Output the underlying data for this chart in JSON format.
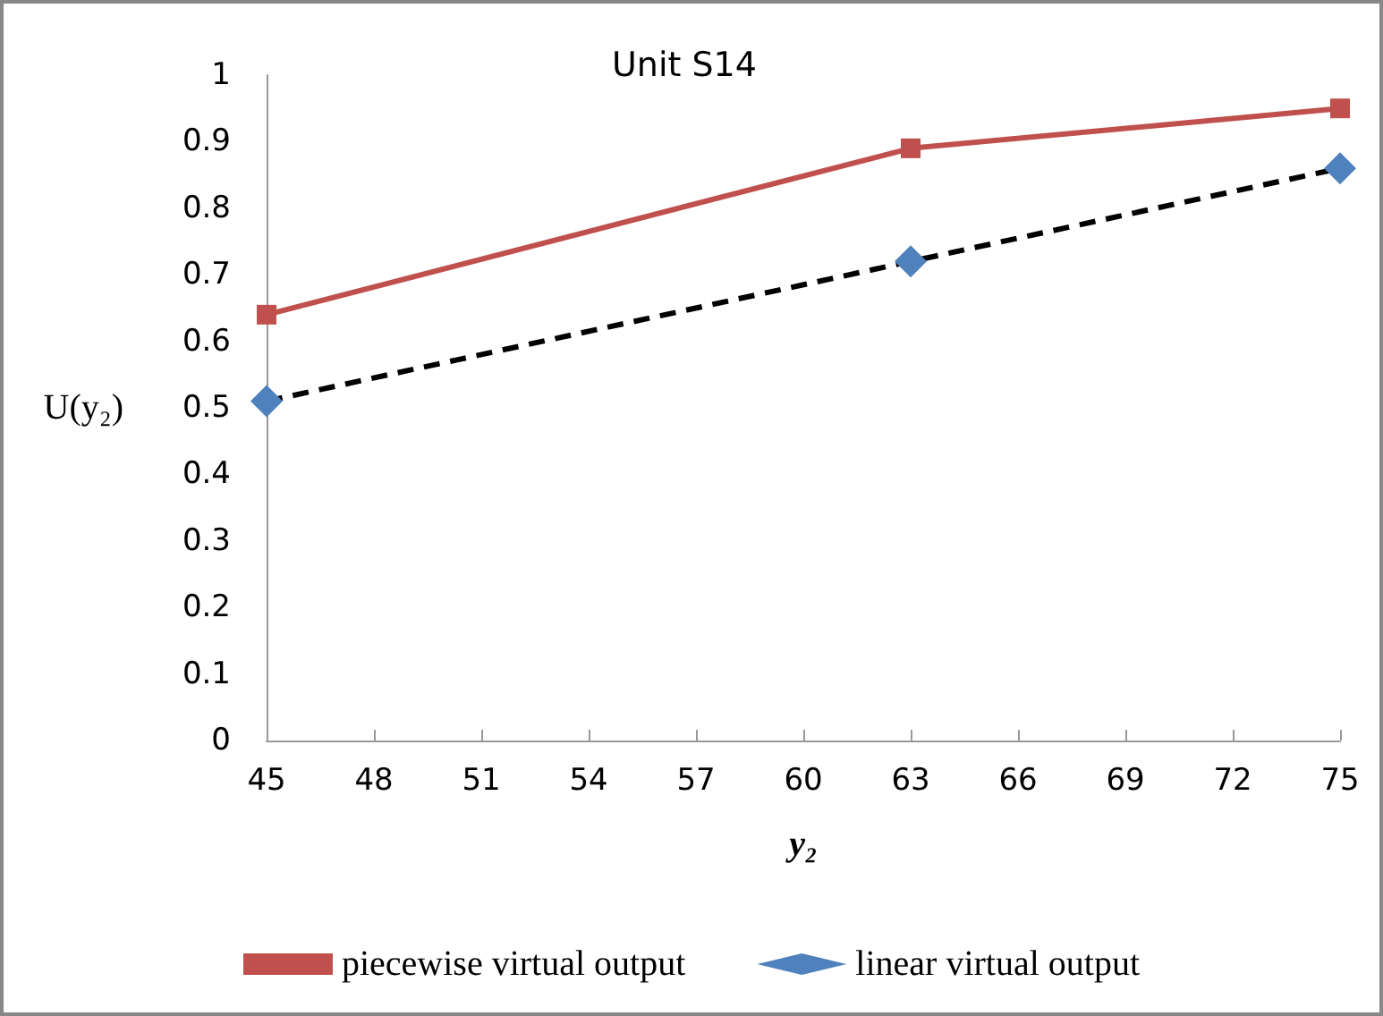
{
  "chart_data": {
    "type": "line",
    "title": "Unit S14",
    "xlabel": "y₂",
    "ylabel": "U(y₂)",
    "x": [
      45,
      63,
      75
    ],
    "series": [
      {
        "name": "piecewise virtual output",
        "color": "#c0504d",
        "values": [
          0.64,
          0.89,
          0.95
        ],
        "marker": "square",
        "line_style": "solid"
      },
      {
        "name": "linear virtual output",
        "color": "#4f81bd",
        "values": [
          0.51,
          0.72,
          0.86
        ],
        "marker": "diamond",
        "line_style": "dashed"
      }
    ],
    "xlim": [
      45,
      75
    ],
    "xticks": [
      45,
      48,
      51,
      54,
      57,
      60,
      63,
      66,
      69,
      72,
      75
    ],
    "ylim": [
      0,
      1
    ],
    "yticks": [
      0,
      0.1,
      0.2,
      0.3,
      0.4,
      0.5,
      0.6,
      0.7,
      0.8,
      0.9,
      1
    ],
    "grid": false,
    "legend": "bottom"
  }
}
